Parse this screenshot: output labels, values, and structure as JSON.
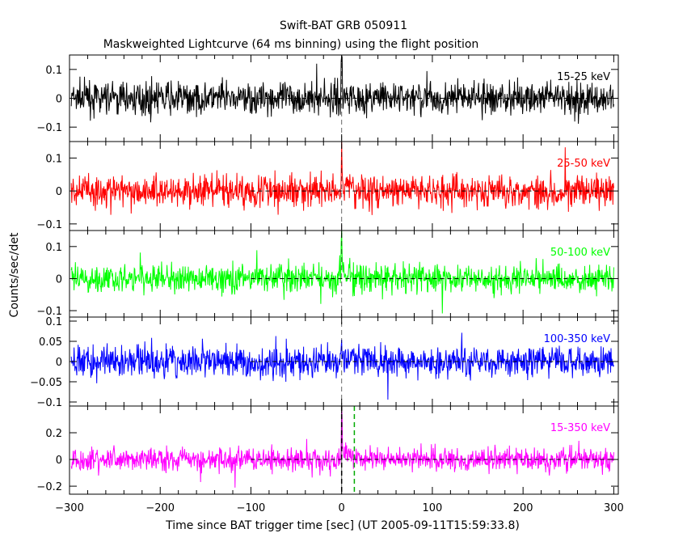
{
  "chart_data": {
    "type": "line",
    "title": "Swift-BAT GRB 050911",
    "subtitle": "Maskweighted Lightcurve (64 ms binning) using the flight position",
    "xlabel": "Time since BAT trigger time [sec] (UT 2005-09-11T15:59:33.8)",
    "ylabel": "Counts/sec/det",
    "xlim": [
      -300,
      305
    ],
    "x_ticks": [
      "-300",
      "-200",
      "-100",
      "0",
      "100",
      "200",
      "300"
    ],
    "x_tick_values": [
      -300,
      -200,
      -100,
      0,
      100,
      200,
      300
    ],
    "bin_size_s": 0.064,
    "trigger_marker_x": 0,
    "panels": [
      {
        "band": "15-25 keV",
        "color": "#000000",
        "ylim": [
          -0.15,
          0.15
        ],
        "y_ticks": [
          0.1,
          0,
          -0.1
        ],
        "y_tick_labels": [
          "0.1",
          "0",
          "−0.1"
        ],
        "noise_amplitude": 0.05,
        "zero_line_from": -100,
        "burst": {
          "time": 0,
          "peak": 0.15
        }
      },
      {
        "band": "25-50 keV",
        "color": "#ff0000",
        "ylim": [
          -0.12,
          0.15
        ],
        "y_ticks": [
          0.1,
          0,
          -0.1
        ],
        "y_tick_labels": [
          "0.1",
          "0",
          "−0.1"
        ],
        "noise_amplitude": 0.045,
        "zero_line_from": -100,
        "burst": {
          "time": 0,
          "peak": 0.13
        }
      },
      {
        "band": "50-100 keV",
        "color": "#00ff00",
        "ylim": [
          -0.12,
          0.15
        ],
        "y_ticks": [
          0.1,
          0,
          -0.1
        ],
        "y_tick_labels": [
          "0.1",
          "0",
          "−0.1"
        ],
        "noise_amplitude": 0.04,
        "zero_line_from": -100,
        "burst": {
          "time": 0,
          "peak": 0.14
        }
      },
      {
        "band": "100-350 keV",
        "color": "#0000ff",
        "ylim": [
          -0.11,
          0.11
        ],
        "y_ticks": [
          0.1,
          0.05,
          0,
          -0.05,
          -0.1
        ],
        "y_tick_labels": [
          "0.1",
          "0.05",
          "0",
          "−0.05",
          "−0.1"
        ],
        "noise_amplitude": 0.035,
        "zero_line_from": -100,
        "burst": {
          "time": 0,
          "peak": 0.06
        }
      },
      {
        "band": "15-350 keV",
        "color": "#ff00ff",
        "ylim": [
          -0.26,
          0.4
        ],
        "y_ticks": [
          0.2,
          0,
          -0.2
        ],
        "y_tick_labels": [
          "0.2",
          "0",
          "−0.2"
        ],
        "noise_amplitude": 0.08,
        "zero_line_from": -100,
        "burst": {
          "time": 0,
          "peak": 0.35
        },
        "markers": [
          {
            "x": 0,
            "color": "#000000"
          },
          {
            "x": 14,
            "color": "#00aa00"
          }
        ]
      }
    ]
  }
}
